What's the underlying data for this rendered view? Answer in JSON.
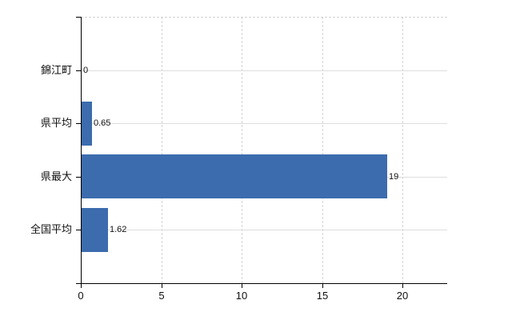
{
  "chart_data": {
    "type": "bar",
    "orientation": "horizontal",
    "title": "",
    "xlabel": "",
    "ylabel": "",
    "categories": [
      "錦江町",
      "県平均",
      "県最大",
      "全国平均"
    ],
    "values": [
      0,
      0.65,
      19,
      1.62
    ],
    "value_labels": [
      "0",
      "0.65",
      "19",
      "1.62"
    ],
    "x_ticks": [
      0,
      5,
      10,
      15,
      20
    ],
    "x_tick_labels": [
      "0",
      "5",
      "10",
      "15",
      "20"
    ],
    "xlim": [
      0,
      22.8
    ],
    "grid": true,
    "legend": false,
    "gridline_style": {
      "vertical": "dashed",
      "horizontal": "solid",
      "top_border": "dashed"
    }
  },
  "colors": {
    "bar": "#3c6cae",
    "axis": "#000000",
    "text": "#111111",
    "grid_horizontal": "#dcdfdc",
    "grid_vertical": "#d7d3da",
    "top_border": "#d2d2d2",
    "background": "#ffffff"
  }
}
